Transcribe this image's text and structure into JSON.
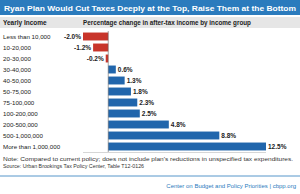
{
  "chart_data": {
    "type": "bar",
    "orientation": "horizontal",
    "title": "Ryan Plan Would Cut Taxes Deeply at the Top, Raise Them at the Bottom",
    "y_label": "Yearly Income",
    "x_label": "Percentage change in after-tax income by income group",
    "categories": [
      "Less than 10,000",
      "10-20,000",
      "20-30,000",
      "30-40,000",
      "40-50,000",
      "50-75,000",
      "75-100,000",
      "100-200,000",
      "200-500,000",
      "500-1,000,000",
      "More than 1,000,000"
    ],
    "values": [
      -2.0,
      -1.2,
      -0.2,
      0.6,
      1.3,
      1.8,
      2.3,
      2.5,
      4.8,
      8.8,
      12.5
    ],
    "value_labels": [
      "-2.0%",
      "-1.2%",
      "-0.2%",
      "0.6%",
      "1.3%",
      "1.8%",
      "2.3%",
      "2.5%",
      "4.8%",
      "8.8%",
      "12.5%"
    ],
    "colors": [
      "#c8352b",
      "#c8352b",
      "#c8352b",
      "#2166ac",
      "#2166ac",
      "#2166ac",
      "#2166ac",
      "#2166ac",
      "#2166ac",
      "#2166ac",
      "#2166ac"
    ],
    "xlim": [
      -2.0,
      12.5
    ],
    "data_labels": true,
    "tick_labels": "y",
    "grid": false,
    "note": "Note: Compared to current policy; does not include plan's reductions in unspecified tax expenditures.",
    "source": "Source: Urban Brookings Tax Policy Center, Table T12-0126",
    "credit": "Center on Budget and Policy Priorities | cbpp.org"
  }
}
